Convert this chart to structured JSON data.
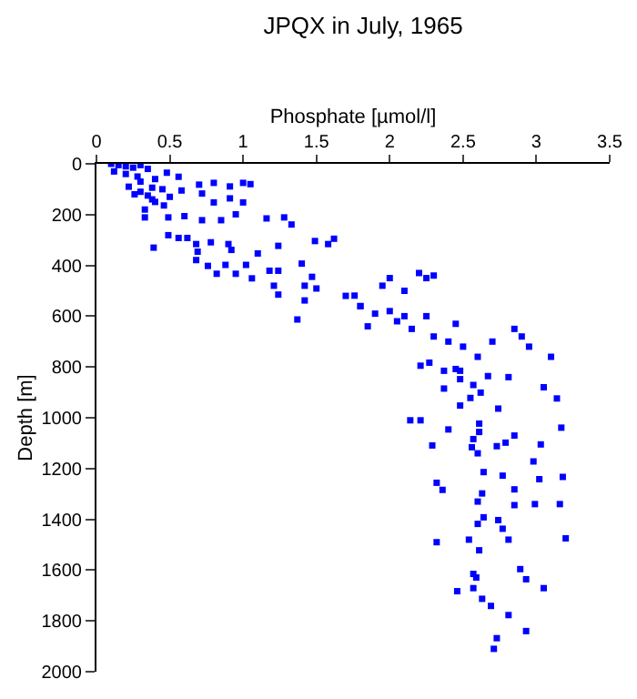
{
  "chart_data": {
    "type": "scatter",
    "title": "JPQX in July, 1965",
    "xlabel": "Phosphate [µmol/l]",
    "ylabel": "Depth [m]",
    "xlim": [
      0,
      3.5
    ],
    "xticks": [
      0,
      0.5,
      1,
      1.5,
      2,
      2.5,
      3,
      3.5
    ],
    "ylim": [
      2000,
      0
    ],
    "yticks": [
      0,
      200,
      400,
      600,
      800,
      1000,
      1200,
      1400,
      1600,
      1800,
      2000
    ],
    "marker": "square",
    "series": [
      {
        "color": "#0000ff",
        "x": [
          0.1,
          0.15,
          0.2,
          0.25,
          0.3,
          0.12,
          0.2,
          0.28,
          0.3,
          0.22,
          0.3,
          0.35,
          0.4,
          0.33,
          0.38,
          0.45,
          0.4,
          0.5,
          0.26,
          0.35,
          0.48,
          0.56,
          0.7,
          0.8,
          0.91,
          1.0,
          1.05,
          0.58,
          0.72,
          0.8,
          0.91,
          1.0,
          0.38,
          0.46,
          0.33,
          0.49,
          0.6,
          0.72,
          0.85,
          0.95,
          1.16,
          1.28,
          1.33,
          0.49,
          0.56,
          0.62,
          0.39,
          0.68,
          0.69,
          0.78,
          0.9,
          0.92,
          0.68,
          0.76,
          0.82,
          0.88,
          0.95,
          1.02,
          1.06,
          1.1,
          1.18,
          1.24,
          1.24,
          1.24,
          1.21,
          1.4,
          1.42,
          1.42,
          1.49,
          1.47,
          1.5,
          1.62,
          1.58,
          1.76,
          1.8,
          1.37,
          1.8,
          1.9,
          2.0,
          2.05,
          2.1,
          2.15,
          2.2,
          2.25,
          2.3,
          2.0,
          1.95,
          2.1,
          1.7,
          2.3,
          2.4,
          2.5,
          2.6,
          2.9,
          2.95,
          2.85,
          3.05,
          3.1,
          2.25,
          1.85,
          2.45,
          2.7,
          2.21,
          2.27,
          2.37,
          2.48,
          2.45,
          2.67,
          2.81,
          2.37,
          2.48,
          2.57,
          2.62,
          2.55,
          2.48,
          2.74,
          3.14,
          2.14,
          2.21,
          2.4,
          2.61,
          2.61,
          2.57,
          2.29,
          2.56,
          2.6,
          2.73,
          2.79,
          2.85,
          3.03,
          3.17,
          2.98,
          2.64,
          2.77,
          3.02,
          3.18,
          2.32,
          2.36,
          2.63,
          2.85,
          2.6,
          2.85,
          2.99,
          3.16,
          2.64,
          2.74,
          2.6,
          2.77,
          2.81,
          2.54,
          3.2,
          2.32,
          2.61,
          2.89,
          2.57,
          2.59,
          2.93,
          3.05,
          2.46,
          2.57,
          2.63,
          2.69,
          2.81,
          2.93,
          2.73,
          2.71
        ],
        "values": [
          0,
          5,
          10,
          15,
          5,
          30,
          40,
          50,
          70,
          90,
          110,
          125,
          150,
          180,
          140,
          100,
          60,
          130,
          120,
          20,
          35,
          51,
          82,
          75,
          89,
          75,
          80,
          105,
          117,
          152,
          136,
          152,
          94,
          164,
          211,
          211,
          206,
          222,
          222,
          199,
          215,
          211,
          239,
          281,
          292,
          292,
          330,
          316,
          346,
          309,
          316,
          339,
          379,
          402,
          433,
          398,
          433,
          398,
          451,
          353,
          421,
          323,
          421,
          515,
          480,
          393,
          480,
          538,
          304,
          445,
          491,
          295,
          316,
          519,
          561,
          613,
          560,
          590,
          580,
          620,
          600,
          650,
          430,
          450,
          440,
          450,
          480,
          500,
          520,
          680,
          700,
          720,
          760,
          680,
          720,
          650,
          880,
          760,
          600,
          640,
          630,
          700,
          795,
          783,
          815,
          815,
          808,
          836,
          840,
          885,
          848,
          871,
          901,
          922,
          952,
          964,
          924,
          1010,
          1010,
          1046,
          1023,
          1056,
          1084,
          1109,
          1116,
          1140,
          1112,
          1098,
          1070,
          1105,
          1039,
          1172,
          1214,
          1228,
          1242,
          1233,
          1256,
          1284,
          1298,
          1282,
          1330,
          1344,
          1340,
          1340,
          1392,
          1403,
          1418,
          1437,
          1480,
          1480,
          1475,
          1490,
          1522,
          1596,
          1615,
          1629,
          1636,
          1671,
          1683,
          1671,
          1713,
          1741,
          1777,
          1840,
          1868,
          1910
        ]
      }
    ]
  }
}
